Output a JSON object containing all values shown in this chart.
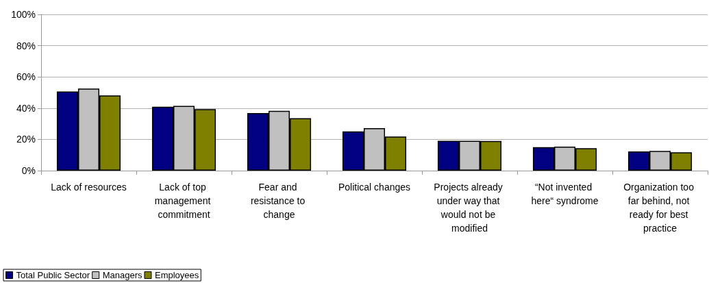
{
  "chart_data": {
    "type": "bar",
    "categories": [
      "Lack of resources",
      "Lack of top management commitment",
      "Fear and resistance to change",
      "Political changes",
      "Projects already under way that would not be modified",
      "“Not invented here“ syndrome",
      "Organization too far behind, not ready for best practice"
    ],
    "series": [
      {
        "name": "Total Public Sector",
        "color": "#000080",
        "values": [
          50.7,
          40.9,
          36.8,
          25.1,
          19.1,
          15.0,
          12.3
        ]
      },
      {
        "name": "Managers",
        "color": "#c0c0c0",
        "values": [
          52.5,
          41.5,
          38.3,
          27.2,
          19.1,
          15.3,
          12.6
        ]
      },
      {
        "name": "Employees",
        "color": "#808000",
        "values": [
          48.1,
          39.4,
          33.6,
          21.8,
          19.0,
          14.4,
          11.7
        ]
      }
    ],
    "ylim": [
      0,
      100
    ],
    "yticks": [
      {
        "value": 0,
        "label": "0%"
      },
      {
        "value": 20,
        "label": "20%"
      },
      {
        "value": 40,
        "label": "40%"
      },
      {
        "value": 60,
        "label": "60%"
      },
      {
        "value": 80,
        "label": "80%"
      },
      {
        "value": 100,
        "label": "100%"
      }
    ],
    "grid": "y",
    "legend": "bottom left"
  }
}
